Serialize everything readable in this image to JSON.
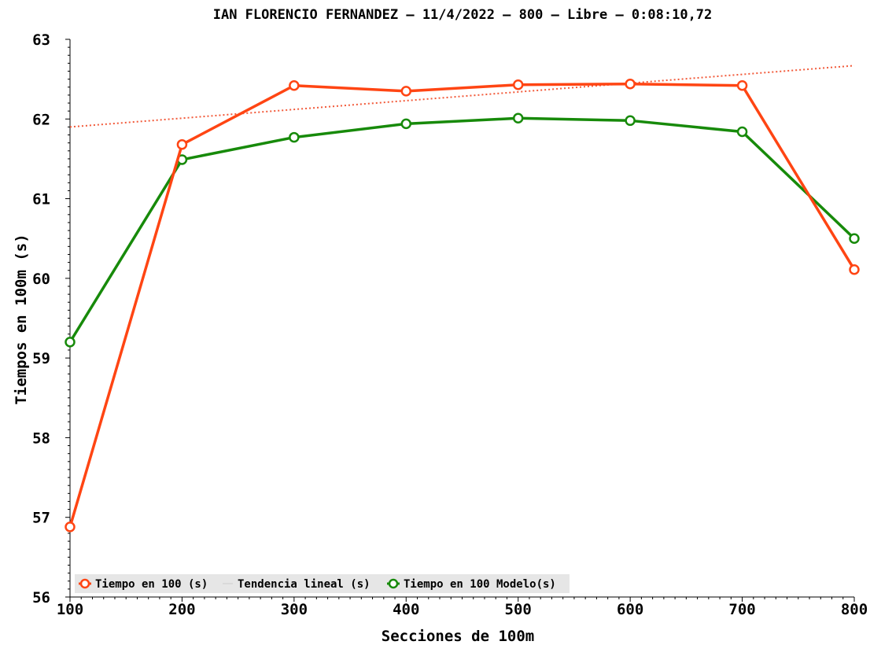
{
  "chart_data": {
    "type": "line",
    "title": "IAN FLORENCIO FERNANDEZ – 11/4/2022 – 800 – Libre – 0:08:10,72",
    "xlabel": "Secciones de 100m",
    "ylabel": "Tiempos en 100m (s)",
    "x": [
      100,
      200,
      300,
      400,
      500,
      600,
      700,
      800
    ],
    "xlim": [
      100,
      800
    ],
    "ylim": [
      56,
      63
    ],
    "xticks": [
      "100",
      "200",
      "300",
      "400",
      "500",
      "600",
      "700",
      "800"
    ],
    "yticks": [
      "56",
      "57",
      "58",
      "59",
      "60",
      "61",
      "62",
      "63"
    ],
    "grid": false,
    "legend_position": "bottom-left",
    "series": [
      {
        "name": "Tiempo en 100 (s)",
        "color": "#ff4513",
        "style": "solid-markers",
        "values": [
          56.88,
          61.68,
          62.42,
          62.35,
          62.43,
          62.44,
          62.42,
          60.11
        ]
      },
      {
        "name": "Tendencia lineal (s)",
        "color": "#f25a3a",
        "style": "dotted",
        "legend_color": "#d9d9d9",
        "values": [
          61.9,
          62.01,
          62.12,
          62.23,
          62.34,
          62.45,
          62.56,
          62.67
        ]
      },
      {
        "name": "Tiempo en 100 Modelo(s)",
        "color": "#178a0a",
        "style": "solid-markers",
        "values": [
          59.2,
          61.49,
          61.77,
          61.94,
          62.01,
          61.98,
          61.84,
          60.5
        ]
      }
    ]
  }
}
